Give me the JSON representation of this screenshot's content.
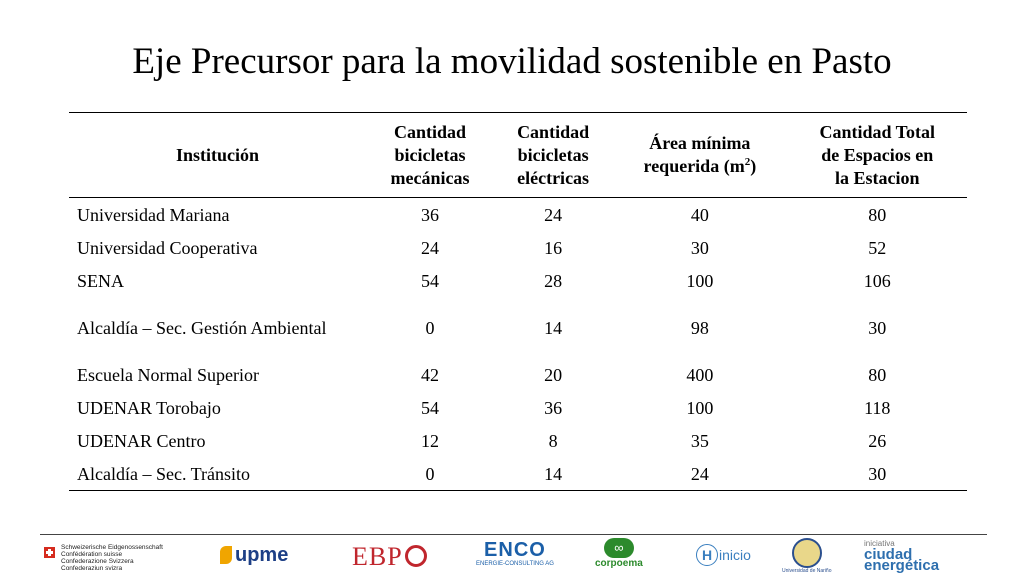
{
  "slide": {
    "title": "Eje Precursor para la movilidad sostenible en Pasto"
  },
  "table": {
    "headers": {
      "institucion": "Institución",
      "mecanicas": [
        "Cantidad",
        "bicicletas",
        "mecánicas"
      ],
      "electricas": [
        "Cantidad",
        "bicicletas",
        "eléctricas"
      ],
      "area_line1": "Área mínima",
      "area_line2": "requerida (m",
      "area_sup": "2",
      "area_close": ")",
      "total": [
        "Cantidad Total",
        "de Espacios en",
        "la Estacion"
      ]
    },
    "rows": [
      {
        "institucion": "Universidad Mariana",
        "mecanicas": "36",
        "electricas": "24",
        "area": "40",
        "total": "80"
      },
      {
        "institucion": "Universidad Cooperativa",
        "mecanicas": "24",
        "electricas": "16",
        "area": "30",
        "total": "52"
      },
      {
        "institucion": "SENA",
        "mecanicas": "54",
        "electricas": "28",
        "area": "100",
        "total": "106"
      },
      {
        "institucion": "Alcaldía – Sec. Gestión Ambiental",
        "mecanicas": "0",
        "electricas": "14",
        "area": "98",
        "total": "30"
      },
      {
        "institucion": "Escuela Normal Superior",
        "mecanicas": "42",
        "electricas": "20",
        "area": "400",
        "total": "80"
      },
      {
        "institucion": "UDENAR Torobajo",
        "mecanicas": "54",
        "electricas": "36",
        "area": "100",
        "total": "118"
      },
      {
        "institucion": "UDENAR Centro",
        "mecanicas": "12",
        "electricas": "8",
        "area": "35",
        "total": "26"
      },
      {
        "institucion": "Alcaldía – Sec. Tránsito",
        "mecanicas": "0",
        "electricas": "14",
        "area": "24",
        "total": "30"
      }
    ]
  },
  "footer": {
    "swiss": [
      "Schweizerische Eidgenossenschaft",
      "Confédération suisse",
      "Confederazione Svizzera",
      "Confederaziun svizra"
    ],
    "upme": "upme",
    "ebp": "EBP",
    "enco": "ENCO",
    "enco_sub": "ENERGIE-CONSULTING AG",
    "corpoema": "corpoema",
    "hinicio_h": "H",
    "hinicio": "inicio",
    "udenar": "Universidad de Nariño",
    "ciudad_l1": "iniciativa",
    "ciudad_l2": "ciudad",
    "ciudad_l3": "energética"
  },
  "colors": {
    "swiss_red": "#d52b1e",
    "upme_blue": "#1d3f86",
    "ebp_red": "#c0262d",
    "enco_blue": "#1b5fa8",
    "corpoema_green": "#2c8a2c"
  }
}
